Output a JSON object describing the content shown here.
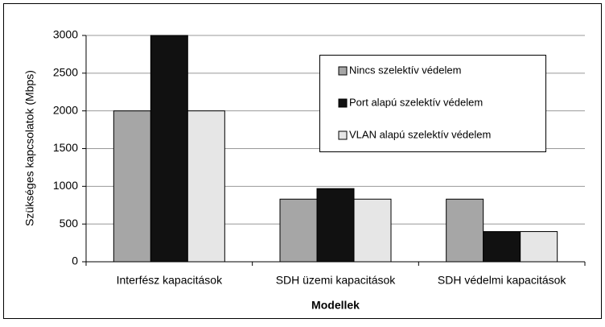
{
  "chart_data": {
    "type": "bar",
    "y_label": "Szükséges kapcsolatok (Mbps)",
    "x_label": "Modellek",
    "categories": [
      "Interfész kapacitások",
      "SDH üzemi kapacitások",
      "SDH védelmi kapacitások"
    ],
    "series": [
      {
        "name": "Nincs szelektív védelem",
        "color": "#a6a6a6",
        "values": [
          2000,
          830,
          830
        ]
      },
      {
        "name": "Port alapú szelektív védelem",
        "color": "#111111",
        "values": [
          3000,
          970,
          400
        ]
      },
      {
        "name": "VLAN alapú szelektív védelem",
        "color": "#e6e6e6",
        "values": [
          2000,
          830,
          400
        ]
      }
    ],
    "ylim": [
      0,
      3000
    ],
    "yticks": [
      0,
      500,
      1000,
      1500,
      2000,
      2500,
      3000
    ],
    "grid": true
  }
}
